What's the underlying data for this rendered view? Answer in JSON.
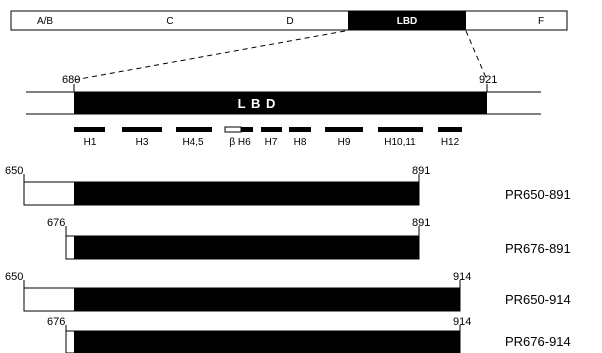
{
  "domains": [
    {
      "label": "A/B"
    },
    {
      "label": "C"
    },
    {
      "label": "D"
    },
    {
      "label": "LBD",
      "filled": true
    },
    {
      "label": "F"
    }
  ],
  "lbd_detail": {
    "start": "680",
    "end": "921",
    "label": "L B D"
  },
  "helices": [
    {
      "label": "H1"
    },
    {
      "label": "H3"
    },
    {
      "label": "H4,5"
    },
    {
      "label": "β H6",
      "beta": true
    },
    {
      "label": "H7"
    },
    {
      "label": "H8"
    },
    {
      "label": "H9"
    },
    {
      "label": "H10,11"
    },
    {
      "label": "H12"
    }
  ],
  "constructs": [
    {
      "name": "PR650-891",
      "start": "650",
      "end": "891"
    },
    {
      "name": "PR676-891",
      "start": "676",
      "end": "891"
    },
    {
      "name": "PR650-914",
      "start": "650",
      "end": "914"
    },
    {
      "name": "PR676-914",
      "start": "676",
      "end": "914"
    }
  ]
}
